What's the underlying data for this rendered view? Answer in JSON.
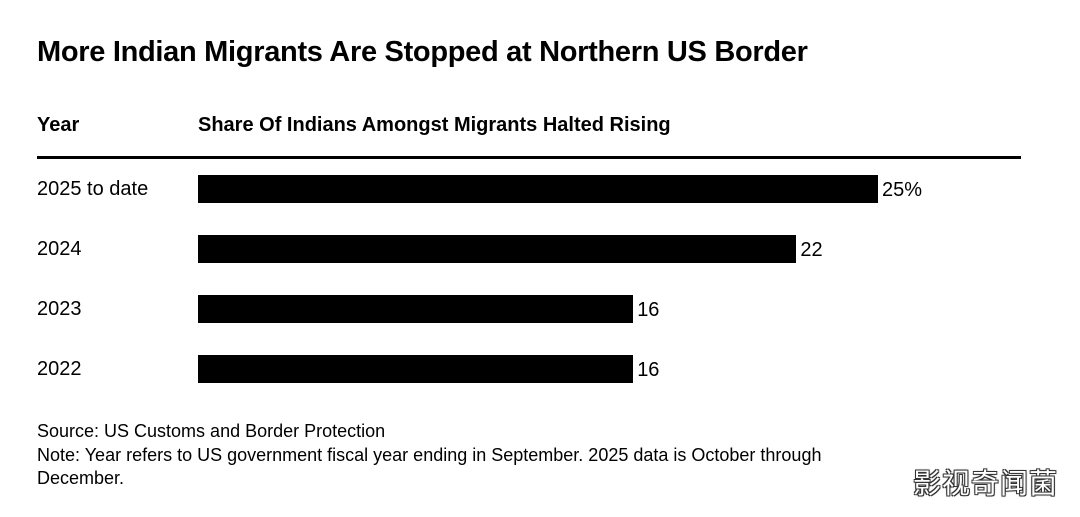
{
  "header": {
    "title": "More Indian Migrants Are Stopped at Northern US Border",
    "col_year": "Year",
    "col_share": "Share Of Indians Amongst Migrants Halted Rising"
  },
  "chart_data": {
    "type": "bar",
    "orientation": "horizontal",
    "title": "More Indian Migrants Are Stopped at Northern US Border",
    "categories": [
      "2025 to date",
      "2024",
      "2023",
      "2022"
    ],
    "values": [
      25,
      22,
      16,
      16
    ],
    "value_labels": [
      "25%",
      "22",
      "16",
      "16"
    ],
    "xlim": [
      0,
      30
    ],
    "grid": false,
    "legend": "none",
    "bar_color": "#000000"
  },
  "footer": {
    "source": "Source: US Customs and Border Protection",
    "note_line1": "Note: Year refers to US government fiscal year ending in September. 2025 data is October through",
    "note_line2": "December."
  },
  "watermark": "影视奇闻菌"
}
